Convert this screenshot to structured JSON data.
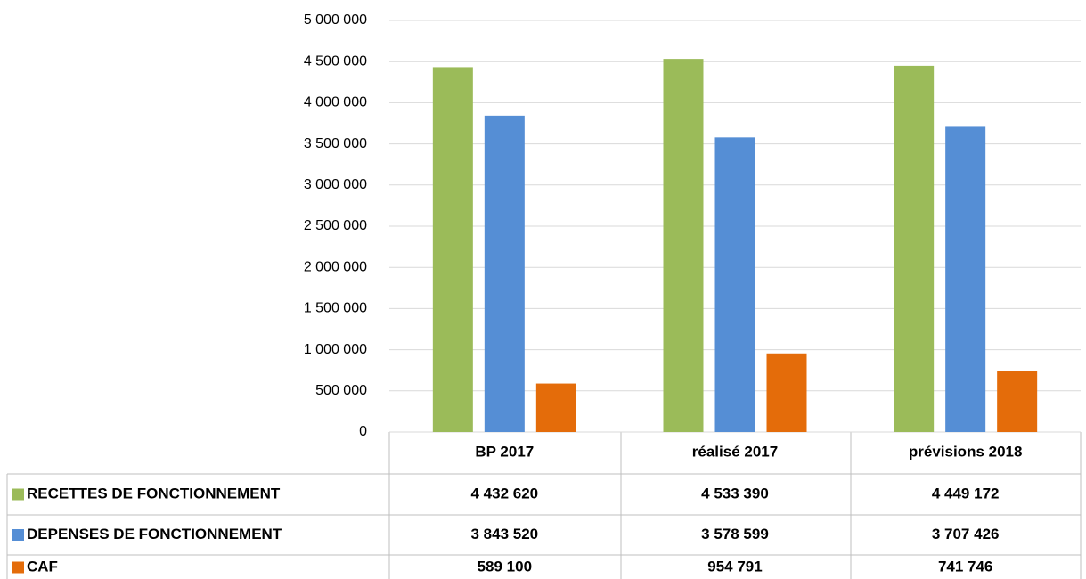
{
  "chart_data": {
    "type": "bar",
    "categories": [
      "BP 2017",
      "réalisé 2017",
      "prévisions 2018"
    ],
    "series": [
      {
        "name": "RECETTES DE FONCTIONNEMENT",
        "color": "#9bbb59",
        "values": [
          4432620,
          4533390,
          4449172
        ],
        "value_labels": [
          "4 432 620",
          "4 533 390",
          "4 449 172"
        ]
      },
      {
        "name": "DEPENSES DE FONCTIONNEMENT",
        "color": "#558ed5",
        "values": [
          3843520,
          3578599,
          3707426
        ],
        "value_labels": [
          "3 843 520",
          "3 578 599",
          "3 707 426"
        ]
      },
      {
        "name": "CAF",
        "color": "#e46c0a",
        "values": [
          589100,
          954791,
          741746
        ],
        "value_labels": [
          "589 100",
          "954 791",
          "741 746"
        ]
      }
    ],
    "ylim": [
      0,
      5000000
    ],
    "yticks": [
      0,
      {
        "value": 500000,
        "label": "500 000"
      },
      {
        "value": 1000000,
        "label": "1 000 000"
      },
      {
        "value": 1500000,
        "label": "1 500 000"
      },
      {
        "value": 2000000,
        "label": "2 000 000"
      },
      {
        "value": 2500000,
        "label": "2 500 000"
      },
      {
        "value": 3000000,
        "label": "3 000 000"
      },
      {
        "value": 3500000,
        "label": "3 500 000"
      },
      {
        "value": 4000000,
        "label": "4 000 000"
      },
      {
        "value": 4500000,
        "label": "4 500 000"
      },
      {
        "value": 5000000,
        "label": "5 000 000"
      }
    ],
    "grid": true
  }
}
